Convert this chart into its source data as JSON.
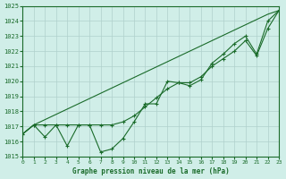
{
  "bg_color": "#d0eee8",
  "grid_color": "#b0d0cc",
  "line_color": "#1a6b2a",
  "xlabel": "Graphe pression niveau de la mer (hPa)",
  "ylim": [
    1015,
    1025
  ],
  "xlim": [
    0,
    23
  ],
  "yticks": [
    1015,
    1016,
    1017,
    1018,
    1019,
    1020,
    1021,
    1022,
    1023,
    1024,
    1025
  ],
  "xticks": [
    0,
    1,
    2,
    3,
    4,
    5,
    6,
    7,
    8,
    9,
    10,
    11,
    12,
    13,
    14,
    15,
    16,
    17,
    18,
    19,
    20,
    21,
    22,
    23
  ],
  "series_zigzag": [
    1016.5,
    1017.1,
    1016.3,
    1017.1,
    1015.7,
    1017.1,
    1017.1,
    1015.3,
    1015.5,
    1016.2,
    1017.3,
    1018.5,
    1018.5,
    1020.0,
    1019.9,
    1019.7,
    1020.1,
    1021.2,
    1021.8,
    1022.5,
    1023.0,
    1021.8,
    1024.0,
    1024.7
  ],
  "series_straight": [
    1016.5,
    1017.1,
    1017.45,
    1017.8,
    1018.15,
    1018.5,
    1018.85,
    1019.2,
    1019.55,
    1019.9,
    1020.25,
    1020.6,
    1020.95,
    1021.3,
    1021.65,
    1022.0,
    1022.35,
    1022.7,
    1023.05,
    1023.4,
    1023.75,
    1024.1,
    1024.45,
    1024.7
  ],
  "series_smooth": [
    1016.5,
    1017.1,
    1017.1,
    1017.1,
    1017.1,
    1017.1,
    1017.1,
    1017.1,
    1017.1,
    1017.3,
    1017.7,
    1018.3,
    1018.9,
    1019.5,
    1019.9,
    1019.9,
    1020.3,
    1021.0,
    1021.5,
    1022.0,
    1022.7,
    1021.7,
    1023.5,
    1024.7
  ]
}
